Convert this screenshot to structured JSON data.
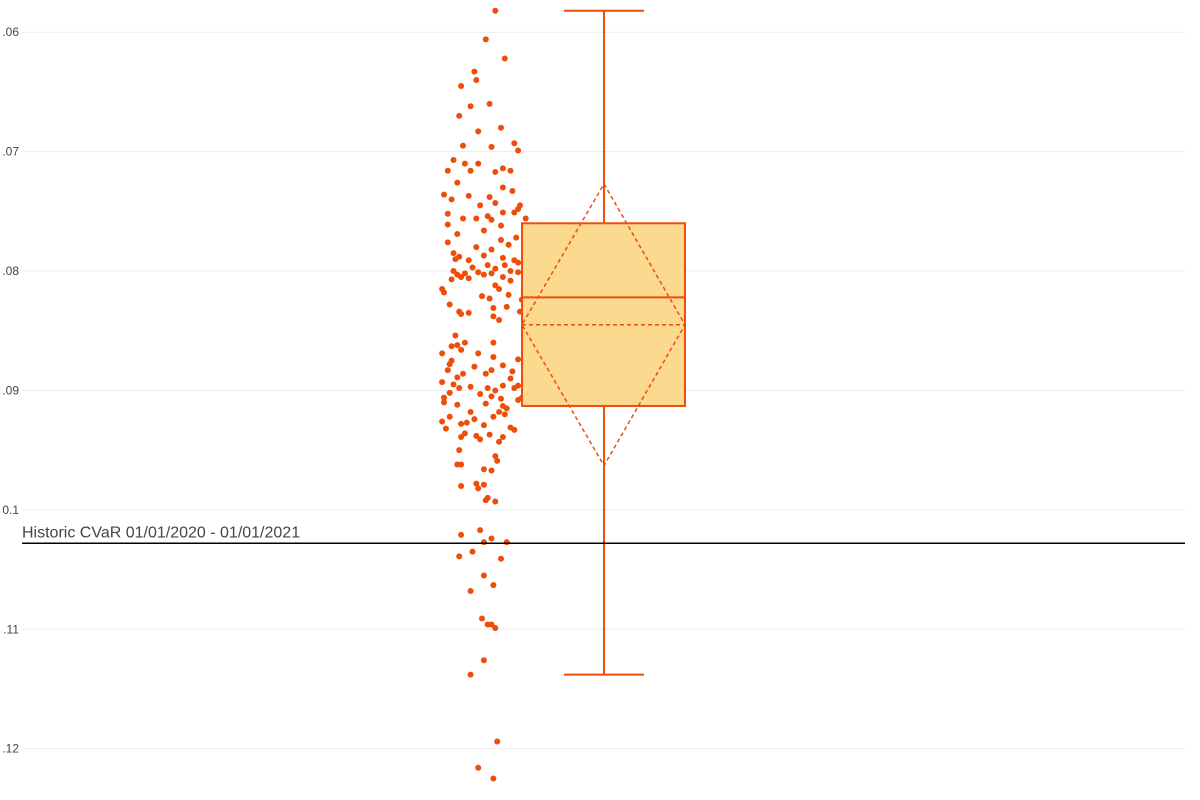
{
  "chart_data": {
    "type": "box",
    "orientation": "vertical",
    "y_ticks": [
      -0.06,
      -0.07,
      -0.08,
      -0.09,
      -0.1,
      -0.11,
      -0.12
    ],
    "y_tick_labels": [
      ".06",
      ".07",
      ".08",
      ".09",
      "0.1",
      ".11",
      ".12"
    ],
    "ylim": [
      -0.1243,
      -0.0573
    ],
    "grid": true,
    "box": {
      "upper_whisker": -0.0582,
      "q3": -0.076,
      "median": -0.0822,
      "mean": -0.0845,
      "q1": -0.0913,
      "lower_whisker": -0.1138,
      "sd_upper": -0.0727,
      "sd_lower": -0.0963
    },
    "points": [
      [
        0.35,
        -0.0582
      ],
      [
        0.1,
        -0.0606
      ],
      [
        0.6,
        -0.0622
      ],
      [
        -0.2,
        -0.0633
      ],
      [
        -0.55,
        -0.0645
      ],
      [
        -0.15,
        -0.064
      ],
      [
        0.2,
        -0.066
      ],
      [
        -0.3,
        -0.0662
      ],
      [
        -0.6,
        -0.067
      ],
      [
        0.5,
        -0.068
      ],
      [
        -0.1,
        -0.0683
      ],
      [
        0.85,
        -0.0693
      ],
      [
        -0.5,
        -0.0695
      ],
      [
        0.25,
        -0.0696
      ],
      [
        0.95,
        -0.0699
      ],
      [
        -0.75,
        -0.0707
      ],
      [
        -0.45,
        -0.071
      ],
      [
        -0.1,
        -0.071
      ],
      [
        0.55,
        -0.0714
      ],
      [
        -0.9,
        -0.0716
      ],
      [
        0.75,
        -0.0716
      ],
      [
        0.35,
        -0.0717
      ],
      [
        -0.3,
        -0.0716
      ],
      [
        -0.65,
        -0.0726
      ],
      [
        0.55,
        -0.073
      ],
      [
        0.8,
        -0.0733
      ],
      [
        -1.0,
        -0.0736
      ],
      [
        -0.35,
        -0.0737
      ],
      [
        0.2,
        -0.0738
      ],
      [
        -0.8,
        -0.074
      ],
      [
        0.35,
        -0.0743
      ],
      [
        1.0,
        -0.0745
      ],
      [
        -0.05,
        -0.0745
      ],
      [
        0.95,
        -0.0748
      ],
      [
        0.55,
        -0.0751
      ],
      [
        0.85,
        -0.0751
      ],
      [
        -0.9,
        -0.0752
      ],
      [
        0.15,
        -0.0754
      ],
      [
        -0.5,
        -0.0756
      ],
      [
        -0.15,
        -0.0756
      ],
      [
        0.25,
        -0.0757
      ],
      [
        1.15,
        -0.0756
      ],
      [
        -0.9,
        -0.0761
      ],
      [
        0.5,
        -0.0762
      ],
      [
        0.05,
        -0.0766
      ],
      [
        -0.65,
        -0.0769
      ],
      [
        0.9,
        -0.0772
      ],
      [
        0.5,
        -0.0774
      ],
      [
        -0.9,
        -0.0776
      ],
      [
        0.7,
        -0.0778
      ],
      [
        -0.15,
        -0.078
      ],
      [
        0.25,
        -0.0782
      ],
      [
        -0.75,
        -0.0785
      ],
      [
        0.05,
        -0.0787
      ],
      [
        -0.6,
        -0.0788
      ],
      [
        0.55,
        -0.0789
      ],
      [
        1.1,
        -0.0789
      ],
      [
        -0.7,
        -0.079
      ],
      [
        -0.35,
        -0.0791
      ],
      [
        0.85,
        -0.0791
      ],
      [
        0.95,
        -0.0793
      ],
      [
        0.6,
        -0.0795
      ],
      [
        0.15,
        -0.0795
      ],
      [
        -0.25,
        -0.0797
      ],
      [
        0.35,
        -0.0798
      ],
      [
        -0.75,
        -0.08
      ],
      [
        0.75,
        -0.08
      ],
      [
        0.95,
        -0.0801
      ],
      [
        -0.1,
        -0.0801
      ],
      [
        0.25,
        -0.0802
      ],
      [
        -0.45,
        -0.0802
      ],
      [
        -0.65,
        -0.0803
      ],
      [
        0.05,
        -0.0803
      ],
      [
        1.15,
        -0.0804
      ],
      [
        -0.55,
        -0.0805
      ],
      [
        0.55,
        -0.0805
      ],
      [
        -0.35,
        -0.0806
      ],
      [
        -0.8,
        -0.0807
      ],
      [
        0.75,
        -0.0808
      ],
      [
        0.35,
        -0.0812
      ],
      [
        0.45,
        -0.0815
      ],
      [
        -1.05,
        -0.0815
      ],
      [
        1.1,
        -0.0816
      ],
      [
        -1.0,
        -0.0818
      ],
      [
        0.7,
        -0.082
      ],
      [
        0.0,
        -0.0821
      ],
      [
        1.1,
        -0.0821
      ],
      [
        0.2,
        -0.0823
      ],
      [
        1.05,
        -0.0824
      ],
      [
        -0.85,
        -0.0828
      ],
      [
        0.65,
        -0.083
      ],
      [
        0.3,
        -0.0831
      ],
      [
        1.0,
        -0.0834
      ],
      [
        -0.6,
        -0.0834
      ],
      [
        -0.35,
        -0.0835
      ],
      [
        -0.55,
        -0.0836
      ],
      [
        0.3,
        -0.0838
      ],
      [
        0.45,
        -0.0841
      ],
      [
        -0.7,
        -0.0854
      ],
      [
        0.3,
        -0.086
      ],
      [
        -0.45,
        -0.086
      ],
      [
        -0.65,
        -0.0862
      ],
      [
        -0.8,
        -0.0863
      ],
      [
        -0.55,
        -0.0866
      ],
      [
        -1.05,
        -0.0869
      ],
      [
        -0.1,
        -0.0869
      ],
      [
        0.3,
        -0.0872
      ],
      [
        0.95,
        -0.0874
      ],
      [
        -0.8,
        -0.0875
      ],
      [
        1.15,
        -0.0876
      ],
      [
        -0.85,
        -0.0878
      ],
      [
        1.1,
        -0.0878
      ],
      [
        0.55,
        -0.0879
      ],
      [
        -0.2,
        -0.088
      ],
      [
        -0.9,
        -0.0883
      ],
      [
        0.25,
        -0.0883
      ],
      [
        0.8,
        -0.0884
      ],
      [
        -0.5,
        -0.0886
      ],
      [
        0.1,
        -0.0886
      ],
      [
        -0.65,
        -0.0889
      ],
      [
        0.75,
        -0.089
      ],
      [
        -1.05,
        -0.0893
      ],
      [
        -0.75,
        -0.0895
      ],
      [
        0.55,
        -0.0896
      ],
      [
        0.95,
        -0.0896
      ],
      [
        -0.3,
        -0.0897
      ],
      [
        -0.6,
        -0.0898
      ],
      [
        0.85,
        -0.0898
      ],
      [
        0.15,
        -0.0898
      ],
      [
        0.35,
        -0.09
      ],
      [
        -0.85,
        -0.0902
      ],
      [
        -0.05,
        -0.0903
      ],
      [
        0.25,
        -0.0905
      ],
      [
        1.05,
        -0.0906
      ],
      [
        -1.0,
        -0.0906
      ],
      [
        0.5,
        -0.0907
      ],
      [
        0.95,
        -0.0908
      ],
      [
        -1.0,
        -0.091
      ],
      [
        0.1,
        -0.0911
      ],
      [
        -0.65,
        -0.0912
      ],
      [
        0.55,
        -0.0913
      ],
      [
        0.65,
        -0.0915
      ],
      [
        0.45,
        -0.0918
      ],
      [
        -0.3,
        -0.0918
      ],
      [
        0.6,
        -0.092
      ],
      [
        -0.85,
        -0.0922
      ],
      [
        0.3,
        -0.0922
      ],
      [
        -0.2,
        -0.0924
      ],
      [
        -1.05,
        -0.0926
      ],
      [
        -0.4,
        -0.0927
      ],
      [
        -0.55,
        -0.0928
      ],
      [
        0.05,
        -0.0929
      ],
      [
        0.75,
        -0.0931
      ],
      [
        -0.95,
        -0.0932
      ],
      [
        0.85,
        -0.0933
      ],
      [
        -0.45,
        -0.0936
      ],
      [
        0.2,
        -0.0937
      ],
      [
        -0.15,
        -0.0938
      ],
      [
        -0.55,
        -0.0939
      ],
      [
        0.55,
        -0.0939
      ],
      [
        -0.05,
        -0.0941
      ],
      [
        0.45,
        -0.0943
      ],
      [
        -0.6,
        -0.095
      ],
      [
        0.35,
        -0.0955
      ],
      [
        0.4,
        -0.0959
      ],
      [
        -0.65,
        -0.0962
      ],
      [
        -0.55,
        -0.0962
      ],
      [
        0.05,
        -0.0966
      ],
      [
        0.25,
        -0.0967
      ],
      [
        -0.15,
        -0.0978
      ],
      [
        0.05,
        -0.0979
      ],
      [
        -0.55,
        -0.098
      ],
      [
        -0.1,
        -0.0982
      ],
      [
        0.15,
        -0.099
      ],
      [
        0.1,
        -0.0992
      ],
      [
        0.35,
        -0.0993
      ],
      [
        -0.05,
        -0.1017
      ],
      [
        -0.55,
        -0.1021
      ],
      [
        0.25,
        -0.1024
      ],
      [
        0.05,
        -0.1027
      ],
      [
        0.65,
        -0.1027
      ],
      [
        -0.25,
        -0.1035
      ],
      [
        -0.6,
        -0.1039
      ],
      [
        0.5,
        -0.1041
      ],
      [
        0.05,
        -0.1055
      ],
      [
        0.3,
        -0.1063
      ],
      [
        -0.3,
        -0.1068
      ],
      [
        0.0,
        -0.1091
      ],
      [
        0.15,
        -0.1096
      ],
      [
        0.25,
        -0.1096
      ],
      [
        0.35,
        -0.1099
      ],
      [
        0.05,
        -0.1126
      ],
      [
        -0.3,
        -0.1138
      ],
      [
        0.4,
        -0.1194
      ],
      [
        -0.1,
        -0.1216
      ],
      [
        0.3,
        -0.1225
      ]
    ],
    "reference_line": {
      "value": -0.1028,
      "label": "Historic CVaR 01/01/2020 - 01/01/2021"
    },
    "colors": {
      "marker": "#ee4d0a",
      "box_line": "#ee4d0a",
      "box_fill": "#fbd98f",
      "grid": "#ececec",
      "reference": "#000000"
    }
  }
}
